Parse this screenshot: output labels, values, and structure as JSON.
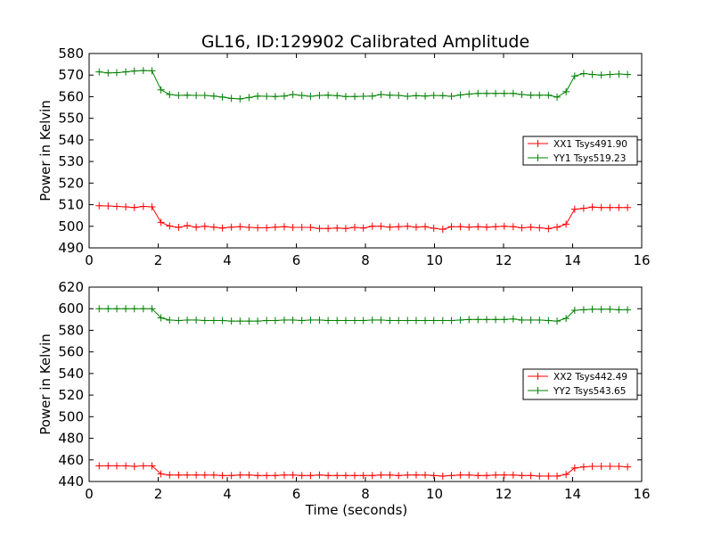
{
  "chart_data": [
    {
      "type": "line",
      "title": "GL16, ID:129902 Calibrated Amplitude",
      "xlabel": "",
      "ylabel": "Power in Kelvin",
      "xlim": [
        0,
        16
      ],
      "ylim": [
        490,
        580
      ],
      "xticks": [
        0,
        2,
        4,
        6,
        8,
        10,
        12,
        14,
        16
      ],
      "yticks": [
        490,
        500,
        510,
        520,
        530,
        540,
        550,
        560,
        570,
        580
      ],
      "legend_position": "center-right",
      "x": [
        0.29,
        0.55,
        0.8,
        1.06,
        1.31,
        1.57,
        1.82,
        2.08,
        2.33,
        2.59,
        2.84,
        3.1,
        3.35,
        3.61,
        3.86,
        4.12,
        4.37,
        4.63,
        4.88,
        5.14,
        5.39,
        5.65,
        5.9,
        6.16,
        6.41,
        6.67,
        6.92,
        7.18,
        7.43,
        7.69,
        7.94,
        8.2,
        8.45,
        8.71,
        8.96,
        9.22,
        9.47,
        9.73,
        9.98,
        10.24,
        10.49,
        10.75,
        11.0,
        11.26,
        11.51,
        11.77,
        12.02,
        12.28,
        12.53,
        12.79,
        13.04,
        13.3,
        13.55,
        13.81,
        14.06,
        14.32,
        14.57,
        14.83,
        15.08,
        15.34,
        15.59
      ],
      "series": [
        {
          "name": "XX1 Tsys491.90",
          "color": "#ff0000",
          "values": [
            509.5,
            509.4,
            509.2,
            509.0,
            508.7,
            509.2,
            509.0,
            501.8,
            500.1,
            499.5,
            500.3,
            499.6,
            500.0,
            499.6,
            499.2,
            499.6,
            499.8,
            499.5,
            499.3,
            499.3,
            499.6,
            499.8,
            499.5,
            499.5,
            499.5,
            499.0,
            499.0,
            499.2,
            499.0,
            499.5,
            499.2,
            500.0,
            500.0,
            499.6,
            499.8,
            500.0,
            499.6,
            499.8,
            499.1,
            498.6,
            499.8,
            499.8,
            499.6,
            499.8,
            499.6,
            499.8,
            500.0,
            499.8,
            499.3,
            499.6,
            499.3,
            498.9,
            499.6,
            501.0,
            507.9,
            508.3,
            508.9,
            508.7,
            508.7,
            508.7,
            508.7
          ]
        },
        {
          "name": "YY1 Tsys519.23",
          "color": "#008000",
          "values": [
            571.5,
            571.0,
            571.1,
            571.5,
            571.9,
            572.1,
            572.0,
            563.2,
            561.0,
            560.6,
            560.7,
            560.6,
            560.6,
            560.3,
            559.8,
            559.2,
            559.0,
            559.6,
            560.3,
            560.2,
            560.1,
            560.3,
            561.0,
            560.6,
            560.2,
            560.6,
            560.7,
            560.5,
            560.1,
            560.1,
            560.2,
            560.3,
            561.0,
            560.7,
            560.6,
            560.2,
            560.5,
            560.3,
            560.6,
            560.5,
            560.2,
            560.8,
            561.2,
            561.5,
            561.5,
            561.5,
            561.5,
            561.5,
            561.0,
            560.7,
            560.7,
            560.7,
            559.8,
            562.3,
            569.6,
            570.7,
            570.3,
            570.0,
            570.3,
            570.5,
            570.3
          ]
        }
      ]
    },
    {
      "type": "line",
      "title": "",
      "xlabel": "Time (seconds)",
      "ylabel": "Power in Kelvin",
      "xlim": [
        0,
        16
      ],
      "ylim": [
        440,
        620
      ],
      "xticks": [
        0,
        2,
        4,
        6,
        8,
        10,
        12,
        14,
        16
      ],
      "yticks": [
        440,
        460,
        480,
        500,
        520,
        540,
        560,
        580,
        600,
        620
      ],
      "legend_position": "center-right",
      "x": [
        0.29,
        0.55,
        0.8,
        1.06,
        1.31,
        1.57,
        1.82,
        2.08,
        2.33,
        2.59,
        2.84,
        3.1,
        3.35,
        3.61,
        3.86,
        4.12,
        4.37,
        4.63,
        4.88,
        5.14,
        5.39,
        5.65,
        5.9,
        6.16,
        6.41,
        6.67,
        6.92,
        7.18,
        7.43,
        7.69,
        7.94,
        8.2,
        8.45,
        8.71,
        8.96,
        9.22,
        9.47,
        9.73,
        9.98,
        10.24,
        10.49,
        10.75,
        11.0,
        11.26,
        11.51,
        11.77,
        12.02,
        12.28,
        12.53,
        12.79,
        13.04,
        13.3,
        13.55,
        13.81,
        14.06,
        14.32,
        14.57,
        14.83,
        15.08,
        15.34,
        15.59
      ],
      "series": [
        {
          "name": "XX2 Tsys442.49",
          "color": "#ff0000",
          "values": [
            454.5,
            454.5,
            454.5,
            454.5,
            454.0,
            454.5,
            454.5,
            447.0,
            446.0,
            446.0,
            446.0,
            446.0,
            446.0,
            446.0,
            445.5,
            445.5,
            446.0,
            446.0,
            445.5,
            445.5,
            445.5,
            446.0,
            446.0,
            445.5,
            445.5,
            446.0,
            445.5,
            445.5,
            445.5,
            445.5,
            445.5,
            445.5,
            446.0,
            446.0,
            445.5,
            446.0,
            446.0,
            446.0,
            445.5,
            445.0,
            445.5,
            446.0,
            446.0,
            445.5,
            445.5,
            446.0,
            446.0,
            446.0,
            445.5,
            445.5,
            445.0,
            445.0,
            445.0,
            446.5,
            452.5,
            453.5,
            454.0,
            454.0,
            454.0,
            454.0,
            453.5
          ]
        },
        {
          "name": "YY2 Tsys543.65",
          "color": "#008000",
          "values": [
            600.0,
            600.0,
            600.0,
            600.0,
            600.0,
            600.0,
            600.0,
            591.5,
            589.5,
            589.0,
            589.5,
            589.5,
            589.0,
            589.0,
            589.0,
            588.5,
            588.5,
            588.5,
            588.5,
            589.0,
            589.0,
            589.5,
            589.5,
            589.0,
            589.5,
            589.5,
            589.0,
            589.0,
            589.0,
            589.0,
            589.0,
            589.5,
            589.5,
            589.0,
            589.0,
            589.0,
            589.0,
            589.0,
            589.0,
            589.0,
            589.0,
            589.5,
            590.0,
            590.0,
            590.0,
            590.0,
            590.0,
            590.5,
            589.5,
            589.5,
            589.5,
            589.0,
            588.5,
            591.0,
            598.5,
            599.0,
            599.5,
            599.5,
            599.5,
            599.0,
            599.0
          ]
        }
      ]
    }
  ]
}
